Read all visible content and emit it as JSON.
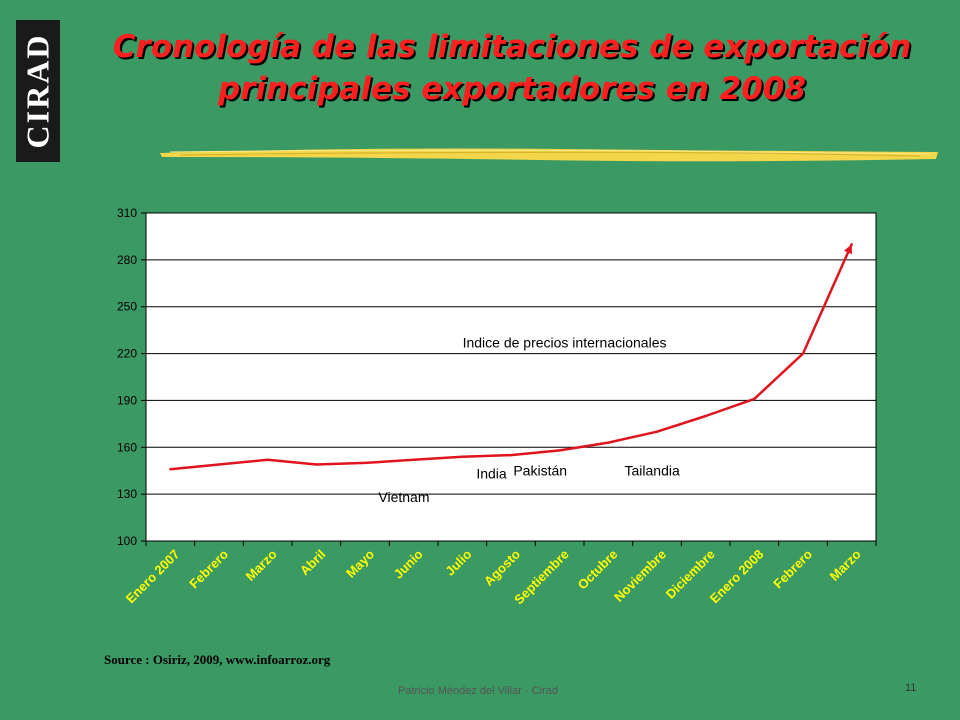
{
  "logo": "CIRAD",
  "title_line1": "Cronología de las limitaciones de exportación",
  "title_line2": "principales exportadores en 2008",
  "source": "Source : Osiriz, 2009, www.infoarroz.org",
  "footer": "Patricio Méndez del Villar - Cirad",
  "page_number": "11",
  "colors": {
    "background": "#3b9963",
    "title": "#ff1f1f",
    "plot_area": "#ffffff",
    "line": "#e0141e",
    "label_text": "#ffff00",
    "brush_stroke": "#f3d64a"
  },
  "chart_data": {
    "type": "line",
    "categories": [
      "Enero 2007",
      "Febrero",
      "Marzo",
      "Abril",
      "Mayo",
      "Junio",
      "Julio",
      "Agosto",
      "Septiembre",
      "Octubre",
      "Noviembre",
      "Diciembre",
      "Enero 2008",
      "Febrero",
      "Marzo"
    ],
    "series": [
      {
        "values": [
          146,
          149,
          152,
          149,
          150,
          152,
          154,
          155,
          158,
          163,
          170,
          180,
          191,
          220,
          290
        ]
      }
    ],
    "ylim": [
      100,
      310
    ],
    "yticks": [
      100,
      130,
      160,
      190,
      220,
      250,
      280,
      310
    ],
    "grid": true,
    "annotations": [
      {
        "text": "Indice de precios internacionales",
        "x": 8.1,
        "y": 224
      },
      {
        "text": "Vietnam",
        "x": 4.8,
        "y": 125
      },
      {
        "text": "India",
        "x": 6.6,
        "y": 140
      },
      {
        "text": "Pakistán",
        "x": 7.6,
        "y": 142
      },
      {
        "text": "Tailandia",
        "x": 9.9,
        "y": 142
      }
    ]
  }
}
